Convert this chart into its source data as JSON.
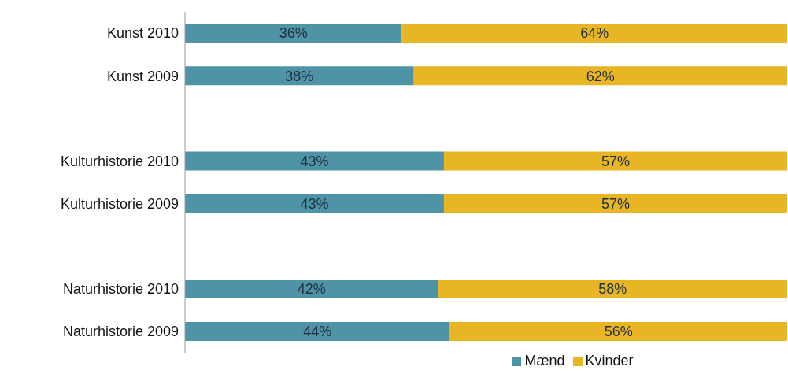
{
  "chart_data": {
    "type": "bar",
    "orientation": "horizontal",
    "stacked": true,
    "categories": [
      "Kunst 2010",
      "Kunst 2009",
      null,
      "Kulturhistorie 2010",
      "Kulturhistorie 2009",
      null,
      "Naturhistorie 2010",
      "Naturhistorie 2009"
    ],
    "series": [
      {
        "name": "Mænd",
        "color": "#4f93a6",
        "values": [
          36,
          38,
          null,
          43,
          43,
          null,
          42,
          44
        ],
        "value_labels": [
          "36%",
          "38%",
          null,
          "43%",
          "43%",
          null,
          "42%",
          "44%"
        ]
      },
      {
        "name": "Kvinder",
        "color": "#e8b524",
        "values": [
          64,
          62,
          null,
          57,
          57,
          null,
          58,
          56
        ],
        "value_labels": [
          "64%",
          "62%",
          null,
          "57%",
          "57%",
          null,
          "58%",
          "56%"
        ]
      }
    ],
    "xlim": [
      0,
      100
    ],
    "tick_labels": "y",
    "grid": false,
    "legend": "bottom"
  }
}
